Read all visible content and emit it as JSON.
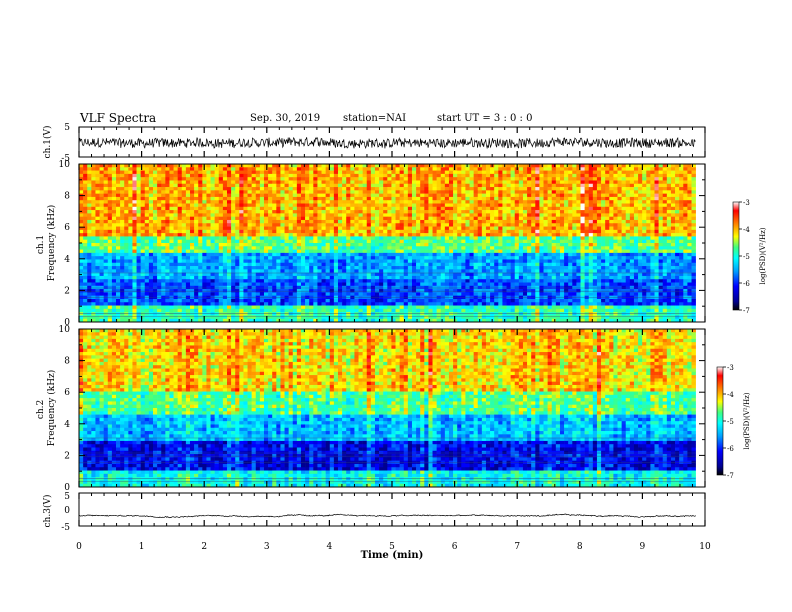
{
  "header": {
    "title": "VLF Spectra",
    "date": "Sep. 30, 2019",
    "station": "station=NAI",
    "start": "start  UT =   3  : 0  : 0"
  },
  "chart_data": [
    {
      "type": "line",
      "id": "ch1-waveform",
      "ylabel": "ch.1(V)",
      "ylim": [
        -5,
        5
      ],
      "yticks": [
        "5",
        "-5"
      ],
      "xlim": [
        0,
        10
      ],
      "series": [
        {
          "values": "noisy waveform roughly between -2 and 2 V"
        }
      ]
    },
    {
      "type": "heatmap",
      "id": "ch1-spectrogram",
      "ylabel": "ch.1\nFrequency (kHz)",
      "ylabel_lines": [
        "ch.1",
        "Frequency (kHz)"
      ],
      "ylim": [
        0,
        10
      ],
      "yticks": [
        "0",
        "2",
        "4",
        "6",
        "8",
        "10"
      ],
      "xlim": [
        0,
        10
      ],
      "colorbar": {
        "label": "log(PSD)(V²/Hz)",
        "ticks": [
          "-3",
          "-4",
          "-5",
          "-6",
          "-7"
        ],
        "range": [
          -7,
          -3
        ]
      },
      "bands_khz": [
        {
          "from": 0,
          "to": 1,
          "level": -5.0
        },
        {
          "from": 1,
          "to": 2.8,
          "level": -6.2
        },
        {
          "from": 2.8,
          "to": 4.3,
          "level": -5.8
        },
        {
          "from": 4.3,
          "to": 5.5,
          "level": -4.8
        },
        {
          "from": 5.5,
          "to": 10,
          "level": -4.0
        }
      ]
    },
    {
      "type": "heatmap",
      "id": "ch2-spectrogram",
      "ylabel": "ch.2\nFrequency (kHz)",
      "ylabel_lines": [
        "ch.2",
        "Frequency (kHz)"
      ],
      "ylim": [
        0,
        10
      ],
      "yticks": [
        "0",
        "2",
        "4",
        "6",
        "8",
        "10"
      ],
      "xlim": [
        0,
        10
      ],
      "colorbar": {
        "label": "log(PSD)(V²/Hz)",
        "ticks": [
          "-3",
          "-4",
          "-5",
          "-6",
          "-7"
        ],
        "range": [
          -7,
          -3
        ]
      },
      "bands_khz": [
        {
          "from": 0,
          "to": 1,
          "level": -5.3
        },
        {
          "from": 1,
          "to": 3,
          "level": -6.6
        },
        {
          "from": 3,
          "to": 4.5,
          "level": -5.7
        },
        {
          "from": 4.5,
          "to": 6,
          "level": -4.9
        },
        {
          "from": 6,
          "to": 10,
          "level": -4.2
        }
      ]
    },
    {
      "type": "line",
      "id": "ch3-waveform",
      "ylabel": "ch.3(V)",
      "ylim": [
        -5,
        5
      ],
      "yticks": [
        "5",
        "0",
        "-5"
      ],
      "xlim": [
        0,
        10
      ],
      "series": [
        {
          "values": "nearly flat around -2 V"
        }
      ]
    }
  ],
  "xaxis": {
    "label": "Time (min)",
    "ticks": [
      "0",
      "1",
      "2",
      "3",
      "4",
      "5",
      "6",
      "7",
      "8",
      "9",
      "10"
    ]
  },
  "colors": {
    "colormap": [
      "#000090",
      "#0000ff",
      "#00a0ff",
      "#00ffff",
      "#40ff80",
      "#ffff00",
      "#ff8000",
      "#ff0000",
      "#ffffff"
    ],
    "axis": "#000000"
  }
}
